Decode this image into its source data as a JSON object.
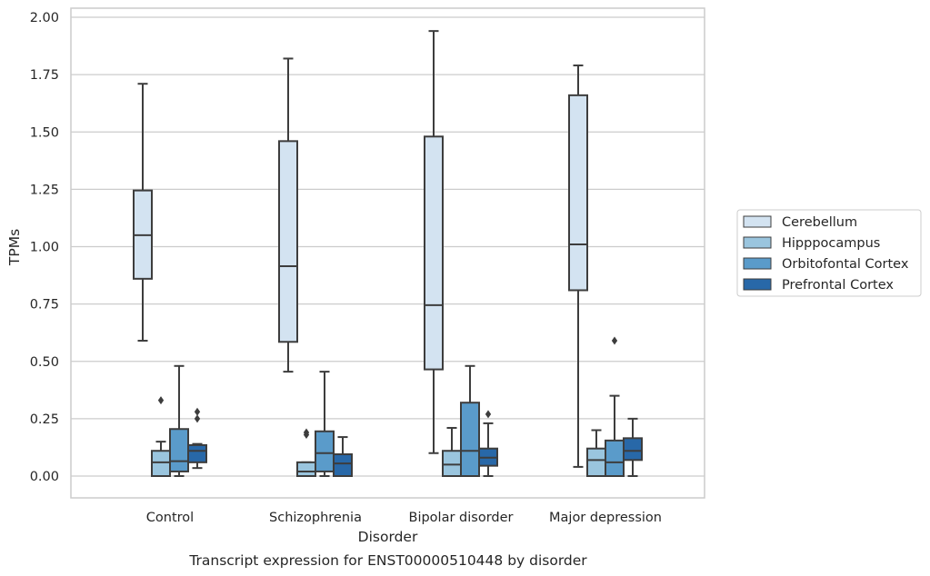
{
  "chart_data": {
    "type": "box",
    "xlabel": "Disorder",
    "ylabel": "TPMs",
    "caption": "Transcript expression for ENST00000510448 by disorder",
    "ylim": [
      -0.095,
      2.04
    ],
    "yticks": [
      0.0,
      0.25,
      0.5,
      0.75,
      1.0,
      1.25,
      1.5,
      1.75,
      2.0
    ],
    "ytick_labels": [
      "0.00",
      "0.25",
      "0.50",
      "0.75",
      "1.00",
      "1.25",
      "1.50",
      "1.75",
      "2.00"
    ],
    "grid": "horizontal",
    "legend_position": "right",
    "categories": [
      "Control",
      "Schizophrenia",
      "Bipolar disorder",
      "Major depression"
    ],
    "series": [
      {
        "name": "Cerebellum",
        "color": "#d3e3f1",
        "boxes": [
          {
            "whisker_low": 0.59,
            "q1": 0.86,
            "median": 1.05,
            "q3": 1.245,
            "whisker_high": 1.71,
            "outliers": []
          },
          {
            "whisker_low": 0.455,
            "q1": 0.585,
            "median": 0.915,
            "q3": 1.46,
            "whisker_high": 1.82,
            "outliers": []
          },
          {
            "whisker_low": 0.1,
            "q1": 0.465,
            "median": 0.745,
            "q3": 1.48,
            "whisker_high": 1.94,
            "outliers": []
          },
          {
            "whisker_low": 0.04,
            "q1": 0.81,
            "median": 1.01,
            "q3": 1.66,
            "whisker_high": 1.79,
            "outliers": []
          }
        ]
      },
      {
        "name": "Hipppocampus",
        "color": "#9ac5de",
        "boxes": [
          {
            "whisker_low": 0.0,
            "q1": 0.0,
            "median": 0.06,
            "q3": 0.11,
            "whisker_high": 0.15,
            "outliers": [
              0.33
            ]
          },
          {
            "whisker_low": 0.0,
            "q1": 0.0,
            "median": 0.02,
            "q3": 0.06,
            "whisker_high": 0.06,
            "outliers": [
              0.18,
              0.19
            ]
          },
          {
            "whisker_low": 0.0,
            "q1": 0.0,
            "median": 0.05,
            "q3": 0.11,
            "whisker_high": 0.21,
            "outliers": []
          },
          {
            "whisker_low": 0.0,
            "q1": 0.0,
            "median": 0.07,
            "q3": 0.12,
            "whisker_high": 0.2,
            "outliers": []
          }
        ]
      },
      {
        "name": "Orbitofontal Cortex",
        "color": "#5a9bca",
        "boxes": [
          {
            "whisker_low": 0.0,
            "q1": 0.02,
            "median": 0.065,
            "q3": 0.205,
            "whisker_high": 0.48,
            "outliers": []
          },
          {
            "whisker_low": 0.0,
            "q1": 0.02,
            "median": 0.1,
            "q3": 0.195,
            "whisker_high": 0.455,
            "outliers": []
          },
          {
            "whisker_low": 0.0,
            "q1": 0.0,
            "median": 0.11,
            "q3": 0.32,
            "whisker_high": 0.48,
            "outliers": []
          },
          {
            "whisker_low": 0.0,
            "q1": 0.0,
            "median": 0.06,
            "q3": 0.155,
            "whisker_high": 0.35,
            "outliers": [
              0.59
            ]
          }
        ]
      },
      {
        "name": "Prefrontal Cortex",
        "color": "#2868a8",
        "boxes": [
          {
            "whisker_low": 0.035,
            "q1": 0.06,
            "median": 0.11,
            "q3": 0.135,
            "whisker_high": 0.14,
            "outliers": [
              0.25,
              0.28
            ]
          },
          {
            "whisker_low": 0.0,
            "q1": 0.0,
            "median": 0.055,
            "q3": 0.095,
            "whisker_high": 0.17,
            "outliers": []
          },
          {
            "whisker_low": 0.0,
            "q1": 0.045,
            "median": 0.08,
            "q3": 0.12,
            "whisker_high": 0.23,
            "outliers": [
              0.27
            ]
          },
          {
            "whisker_low": 0.0,
            "q1": 0.07,
            "median": 0.11,
            "q3": 0.165,
            "whisker_high": 0.25,
            "outliers": []
          }
        ]
      }
    ]
  }
}
